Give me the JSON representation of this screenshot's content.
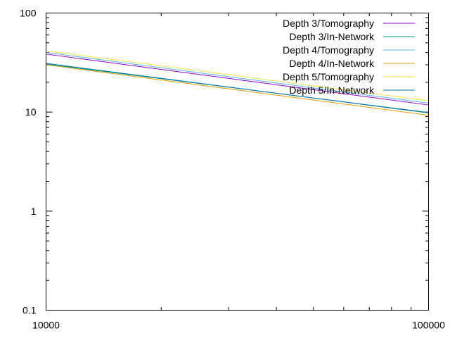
{
  "chart_data": {
    "type": "line",
    "title": "",
    "xlabel": "",
    "ylabel": "",
    "xscale": "log",
    "yscale": "log",
    "xlim": [
      10000,
      100000
    ],
    "ylim": [
      0.1,
      100
    ],
    "x_ticks": [
      "10000",
      "100000"
    ],
    "y_ticks": [
      "0.1",
      "1",
      "10",
      "100"
    ],
    "grid": false,
    "legend_position": "top-right",
    "series": [
      {
        "name": "Depth 3/Tomography",
        "color": "#9400d3",
        "x": [
          10000,
          100000
        ],
        "y": [
          38.5,
          11.8
        ]
      },
      {
        "name": "Depth 3/In-Network",
        "color": "#009e73",
        "x": [
          10000,
          100000
        ],
        "y": [
          30.5,
          9.9
        ]
      },
      {
        "name": "Depth 4/Tomography",
        "color": "#56b4e9",
        "x": [
          10000,
          100000
        ],
        "y": [
          40.0,
          12.3
        ]
      },
      {
        "name": "Depth 4/In-Network",
        "color": "#e69f00",
        "x": [
          10000,
          100000
        ],
        "y": [
          30.0,
          9.3
        ]
      },
      {
        "name": "Depth 5/Tomography",
        "color": "#f0e442",
        "x": [
          10000,
          100000
        ],
        "y": [
          41.5,
          13.0
        ]
      },
      {
        "name": "Depth 5/In-Network",
        "color": "#0072b2",
        "x": [
          10000,
          100000
        ],
        "y": [
          31.0,
          9.8
        ]
      }
    ]
  }
}
